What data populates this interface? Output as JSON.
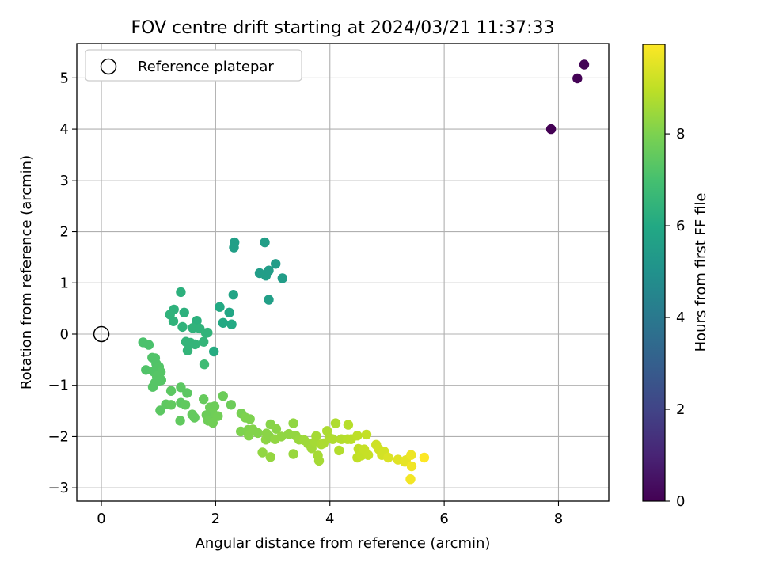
{
  "chart_data": {
    "type": "scatter",
    "title": "FOV centre drift starting at 2024/03/21 11:37:33",
    "xlabel": "Angular distance from reference (arcmin)",
    "ylabel": "Rotation from reference (arcmin)",
    "xlim": [
      -0.43,
      8.88
    ],
    "ylim": [
      -3.26,
      5.67
    ],
    "xticks": [
      0,
      2,
      4,
      6,
      8
    ],
    "yticks": [
      -3,
      -2,
      -1,
      0,
      1,
      2,
      3,
      4,
      5
    ],
    "grid": true,
    "legend": {
      "placement": "top-left",
      "entries": [
        "Reference platepar"
      ]
    },
    "colorbar": {
      "label": "Hours from first FF file",
      "colormap": "viridis",
      "range": [
        0,
        9.95
      ],
      "ticks": [
        0,
        2,
        4,
        6,
        8
      ]
    },
    "reference_point": {
      "x": 0,
      "y": 0
    },
    "series": [
      {
        "points": [
          [
            7.87,
            4.0,
            0.0
          ],
          [
            8.33,
            4.99,
            0.05
          ],
          [
            8.45,
            5.26,
            0.1
          ],
          [
            2.33,
            1.79,
            5.6
          ],
          [
            2.32,
            1.69,
            5.6
          ],
          [
            2.86,
            1.79,
            5.55
          ],
          [
            2.77,
            1.19,
            5.5
          ],
          [
            2.88,
            1.14,
            5.55
          ],
          [
            2.93,
            1.24,
            5.5
          ],
          [
            3.05,
            1.37,
            5.5
          ],
          [
            3.17,
            1.09,
            5.5
          ],
          [
            2.93,
            0.67,
            5.6
          ],
          [
            2.31,
            0.77,
            5.8
          ],
          [
            2.24,
            0.42,
            5.9
          ],
          [
            2.07,
            0.53,
            6.0
          ],
          [
            2.13,
            0.22,
            6.0
          ],
          [
            2.28,
            0.19,
            6.0
          ],
          [
            1.97,
            -0.34,
            6.1
          ],
          [
            1.39,
            0.82,
            6.3
          ],
          [
            1.27,
            0.48,
            6.35
          ],
          [
            1.2,
            0.38,
            6.4
          ],
          [
            1.26,
            0.25,
            6.4
          ],
          [
            1.45,
            0.42,
            6.3
          ],
          [
            1.67,
            0.26,
            6.3
          ],
          [
            1.42,
            0.14,
            6.4
          ],
          [
            1.6,
            0.12,
            6.4
          ],
          [
            1.72,
            0.11,
            6.4
          ],
          [
            1.83,
            0.02,
            6.5
          ],
          [
            1.86,
            0.03,
            6.45
          ],
          [
            1.48,
            -0.15,
            6.5
          ],
          [
            1.56,
            -0.17,
            6.5
          ],
          [
            1.64,
            -0.2,
            6.5
          ],
          [
            1.51,
            -0.32,
            6.5
          ],
          [
            1.79,
            -0.15,
            6.5
          ],
          [
            1.8,
            -0.59,
            6.8
          ],
          [
            0.73,
            -0.16,
            7.1
          ],
          [
            0.83,
            -0.21,
            7.1
          ],
          [
            0.89,
            -0.46,
            7.2
          ],
          [
            0.94,
            -0.47,
            7.2
          ],
          [
            0.96,
            -0.58,
            7.2
          ],
          [
            1.01,
            -0.64,
            7.25
          ],
          [
            1.04,
            -0.74,
            7.3
          ],
          [
            0.78,
            -0.7,
            7.2
          ],
          [
            0.91,
            -0.73,
            7.25
          ],
          [
            0.97,
            -0.82,
            7.3
          ],
          [
            1.01,
            -0.91,
            7.3
          ],
          [
            1.05,
            -0.9,
            7.3
          ],
          [
            0.9,
            -1.03,
            7.3
          ],
          [
            0.94,
            -0.95,
            7.3
          ],
          [
            1.22,
            -1.11,
            7.4
          ],
          [
            1.39,
            -1.04,
            7.4
          ],
          [
            1.5,
            -1.15,
            7.4
          ],
          [
            1.03,
            -1.49,
            7.4
          ],
          [
            1.13,
            -1.37,
            7.45
          ],
          [
            1.22,
            -1.38,
            7.5
          ],
          [
            1.39,
            -1.34,
            7.45
          ],
          [
            1.47,
            -1.38,
            7.5
          ],
          [
            1.38,
            -1.69,
            7.5
          ],
          [
            1.59,
            -1.57,
            7.55
          ],
          [
            1.63,
            -1.63,
            7.55
          ],
          [
            1.79,
            -1.27,
            7.6
          ],
          [
            1.9,
            -1.43,
            7.7
          ],
          [
            1.98,
            -1.41,
            7.7
          ],
          [
            1.95,
            -1.55,
            7.75
          ],
          [
            2.04,
            -1.6,
            7.8
          ],
          [
            1.84,
            -1.58,
            7.7
          ],
          [
            1.87,
            -1.69,
            7.75
          ],
          [
            1.95,
            -1.73,
            7.8
          ],
          [
            2.13,
            -1.21,
            7.7
          ],
          [
            2.27,
            -1.38,
            7.7
          ],
          [
            2.45,
            -1.55,
            7.9
          ],
          [
            2.52,
            -1.63,
            8.0
          ],
          [
            2.6,
            -1.66,
            8.0
          ],
          [
            2.44,
            -1.9,
            8.0
          ],
          [
            2.57,
            -1.87,
            8.05
          ],
          [
            2.58,
            -1.98,
            8.1
          ],
          [
            2.65,
            -1.86,
            8.1
          ],
          [
            2.74,
            -1.93,
            8.1
          ],
          [
            2.89,
            -1.94,
            8.2
          ],
          [
            2.88,
            -2.06,
            8.25
          ],
          [
            2.94,
            -2.0,
            8.2
          ],
          [
            2.96,
            -1.76,
            8.15
          ],
          [
            3.06,
            -1.85,
            8.2
          ],
          [
            3.04,
            -2.05,
            8.3
          ],
          [
            3.15,
            -2.0,
            8.3
          ],
          [
            3.28,
            -1.95,
            8.3
          ],
          [
            3.36,
            -1.74,
            8.3
          ],
          [
            3.4,
            -1.98,
            8.35
          ],
          [
            3.46,
            -2.06,
            8.4
          ],
          [
            2.82,
            -2.31,
            8.3
          ],
          [
            2.96,
            -2.4,
            8.35
          ],
          [
            3.36,
            -2.34,
            8.4
          ],
          [
            3.55,
            -2.07,
            8.5
          ],
          [
            3.62,
            -2.14,
            8.5
          ],
          [
            3.68,
            -2.23,
            8.55
          ],
          [
            3.74,
            -2.1,
            8.6
          ],
          [
            3.76,
            -1.99,
            8.6
          ],
          [
            3.79,
            -2.37,
            8.6
          ],
          [
            3.81,
            -2.47,
            8.6
          ],
          [
            3.85,
            -2.15,
            8.65
          ],
          [
            3.89,
            -2.13,
            8.7
          ],
          [
            3.95,
            -1.89,
            8.7
          ],
          [
            3.99,
            -2.02,
            8.7
          ],
          [
            4.05,
            -2.05,
            8.75
          ],
          [
            4.1,
            -1.74,
            8.75
          ],
          [
            4.16,
            -2.27,
            8.8
          ],
          [
            4.2,
            -2.05,
            8.8
          ],
          [
            4.31,
            -2.05,
            8.85
          ],
          [
            4.32,
            -1.77,
            8.85
          ],
          [
            4.37,
            -2.05,
            8.9
          ],
          [
            4.48,
            -1.98,
            8.95
          ],
          [
            4.5,
            -2.24,
            9.0
          ],
          [
            4.48,
            -2.41,
            9.0
          ],
          [
            4.55,
            -2.37,
            9.05
          ],
          [
            4.6,
            -2.25,
            9.1
          ],
          [
            4.64,
            -1.96,
            9.05
          ],
          [
            4.67,
            -2.36,
            9.1
          ],
          [
            4.81,
            -2.16,
            9.2
          ],
          [
            4.86,
            -2.25,
            9.25
          ],
          [
            4.91,
            -2.36,
            9.3
          ],
          [
            4.95,
            -2.29,
            9.3
          ],
          [
            5.02,
            -2.41,
            9.4
          ],
          [
            5.19,
            -2.45,
            9.5
          ],
          [
            5.31,
            -2.49,
            9.6
          ],
          [
            5.33,
            -2.46,
            9.6
          ],
          [
            5.42,
            -2.36,
            9.7
          ],
          [
            5.43,
            -2.58,
            9.75
          ],
          [
            5.41,
            -2.83,
            9.8
          ],
          [
            5.65,
            -2.41,
            9.95
          ]
        ]
      }
    ]
  }
}
